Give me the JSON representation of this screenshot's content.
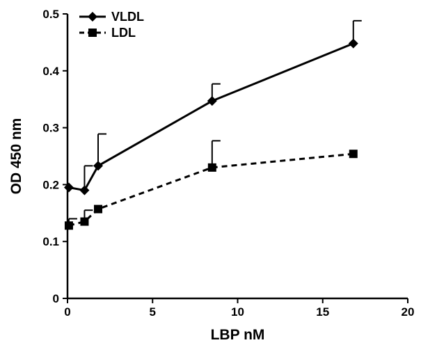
{
  "chart_data": {
    "type": "line",
    "title": "",
    "xlabel": "LBP nM",
    "ylabel": "OD 450 nm",
    "xlim": [
      0,
      20
    ],
    "ylim": [
      0,
      0.5
    ],
    "xticks": [
      0,
      5,
      10,
      15,
      20
    ],
    "yticks": [
      0,
      0.1,
      0.2,
      0.3,
      0.4,
      0.5
    ],
    "xtick_labels": [
      "0",
      "5",
      "10",
      "15",
      "20"
    ],
    "ytick_labels": [
      "0",
      "0.1",
      "0.2",
      "0.3",
      "0.4",
      "0.5"
    ],
    "grid": false,
    "legend_position": "top-left",
    "series": [
      {
        "name": "VLDL",
        "line_style": "solid",
        "marker": "diamond",
        "color": "#000000",
        "points": [
          {
            "x": 0.08,
            "y": 0.195,
            "err": 0.0
          },
          {
            "x": 1.0,
            "y": 0.19,
            "err": 0.043
          },
          {
            "x": 1.8,
            "y": 0.233,
            "err": 0.056
          },
          {
            "x": 8.5,
            "y": 0.347,
            "err": 0.03
          },
          {
            "x": 16.8,
            "y": 0.448,
            "err": 0.04
          }
        ]
      },
      {
        "name": "LDL",
        "line_style": "dashed",
        "marker": "square",
        "color": "#000000",
        "points": [
          {
            "x": 0.08,
            "y": 0.128,
            "err": 0.012
          },
          {
            "x": 1.0,
            "y": 0.135,
            "err": 0.02
          },
          {
            "x": 1.8,
            "y": 0.157,
            "err": 0.0
          },
          {
            "x": 8.5,
            "y": 0.23,
            "err": 0.047
          },
          {
            "x": 16.8,
            "y": 0.254,
            "err": 0.0
          }
        ]
      }
    ]
  }
}
